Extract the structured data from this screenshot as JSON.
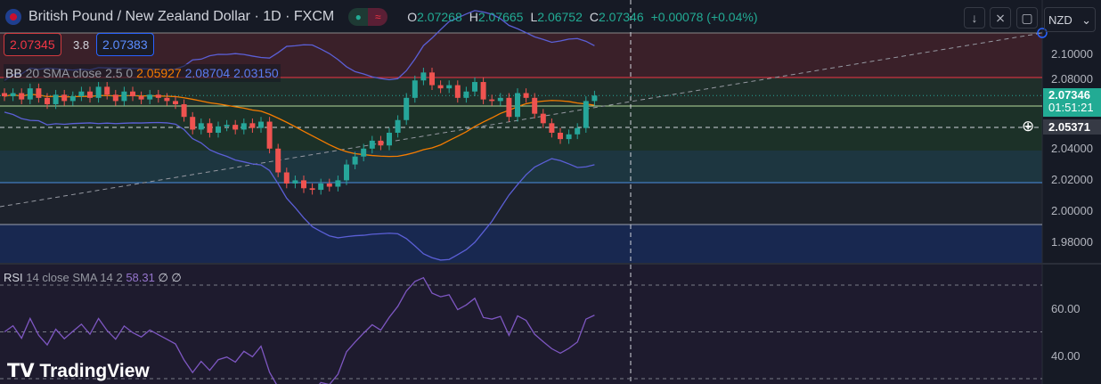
{
  "header": {
    "title": "British Pound / New Zealand Dollar · 1D · FXCM",
    "open_label": "O",
    "open": "2.07268",
    "high_label": "H",
    "high": "2.07665",
    "low_label": "L",
    "low": "2.06752",
    "close_label": "C",
    "close": "2.07346",
    "change": "+0.00078 (+0.04%)"
  },
  "trade": {
    "sell": "2.07345",
    "spread": "3.8",
    "buy": "2.07383"
  },
  "bb_legend": {
    "name": "BB",
    "params": "20 SMA close 2.5 0",
    "basis": "2.05927",
    "upper": "2.08704",
    "lower": "2.03150"
  },
  "rsi_legend": {
    "name": "RSI",
    "params": "14 close SMA 14 2",
    "value": "58.31",
    "extra": "∅ ∅"
  },
  "toolbar": {
    "currency": "NZD",
    "icons": [
      "arrow-down-icon",
      "collapse-icon",
      "fullscreen-icon"
    ]
  },
  "price_axis": {
    "ticks": [
      "2.10000",
      "2.08000",
      "2.04000",
      "2.02000",
      "2.00000",
      "1.98000"
    ],
    "last_price": "2.07346",
    "countdown": "01:51:21",
    "crosshair_price": "2.05371"
  },
  "rsi_axis": {
    "ticks": [
      "60.00",
      "40.00"
    ]
  },
  "logo": "TradingView",
  "colors": {
    "up": "#26a69a",
    "down": "#ef5350",
    "bb_basis": "#f57c00",
    "bb_band": "#5b5fd6",
    "rsi": "#7e57c2",
    "background": "#161a25"
  },
  "chart_data": {
    "type": "candlestick",
    "interval": "1D",
    "ylim": [
      1.965,
      2.115
    ],
    "close": [
      2.073,
      2.075,
      2.071,
      2.078,
      2.072,
      2.068,
      2.074,
      2.07,
      2.073,
      2.076,
      2.072,
      2.079,
      2.074,
      2.07,
      2.076,
      2.073,
      2.071,
      2.074,
      2.072,
      2.07,
      2.068,
      2.06,
      2.052,
      2.056,
      2.05,
      2.054,
      2.055,
      2.052,
      2.056,
      2.053,
      2.057,
      2.04,
      2.025,
      2.018,
      2.02,
      2.015,
      2.014,
      2.018,
      2.016,
      2.02,
      2.03,
      2.035,
      2.04,
      2.045,
      2.042,
      2.05,
      2.058,
      2.072,
      2.083,
      2.088,
      2.08,
      2.078,
      2.08,
      2.072,
      2.076,
      2.082,
      2.071,
      2.07,
      2.072,
      2.06,
      2.075,
      2.072,
      2.062,
      2.056,
      2.05,
      2.046,
      2.049,
      2.053,
      2.07,
      2.07346
    ],
    "indicators": [
      "Bollinger Bands 20 SMA 2.5",
      "RSI 14"
    ],
    "rsi_ylim": [
      28,
      78
    ],
    "rsi_levels": [
      70,
      50,
      30
    ]
  }
}
